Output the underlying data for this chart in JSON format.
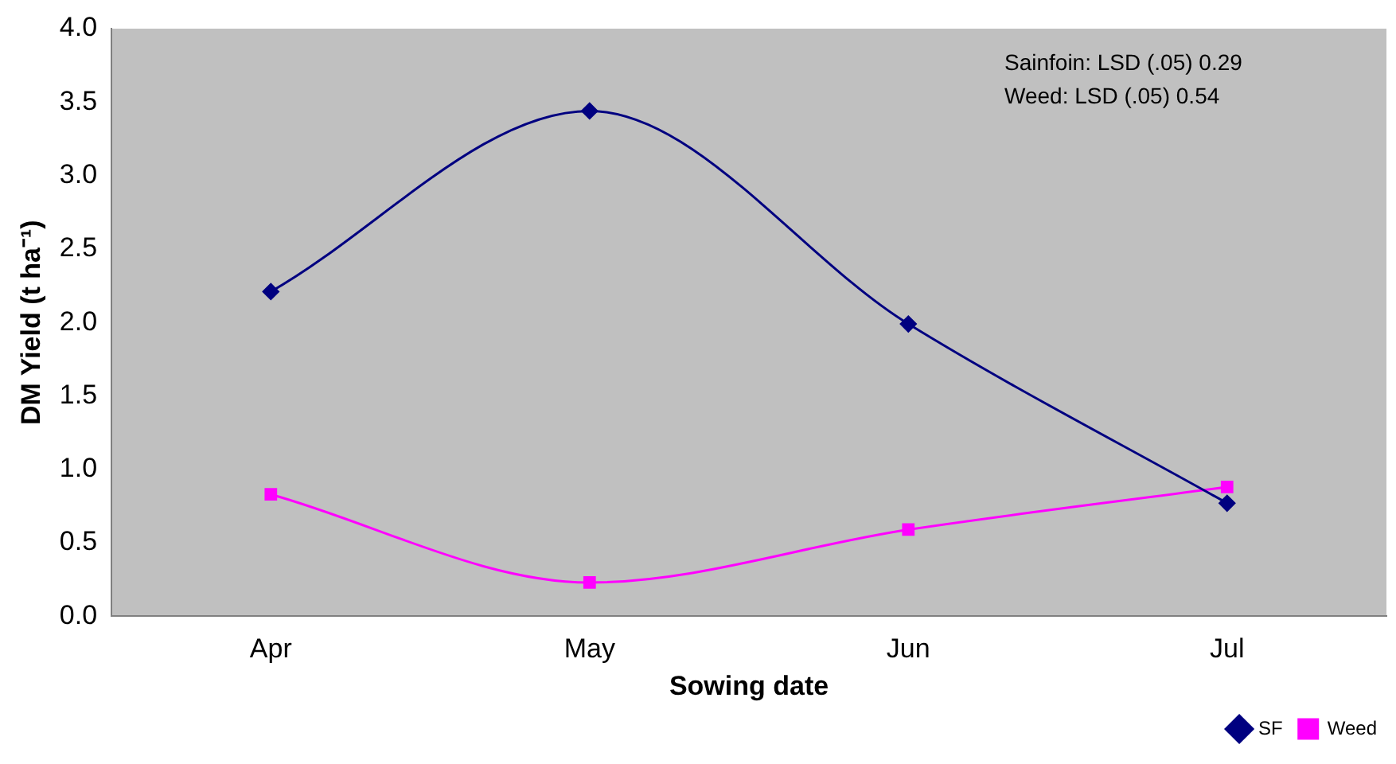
{
  "chart_data": {
    "type": "line",
    "xlabel": "Sowing date",
    "ylabel": "DM Yield (t ha⁻¹)",
    "categories": [
      "Apr",
      "May",
      "Jun",
      "Jul"
    ],
    "series": [
      {
        "name": "SF",
        "color": "#000080",
        "marker": "diamond",
        "values": [
          2.21,
          3.44,
          1.99,
          0.77
        ]
      },
      {
        "name": "Weed",
        "color": "#ff00ff",
        "marker": "square",
        "values": [
          0.83,
          0.23,
          0.59,
          0.88
        ]
      }
    ],
    "ylim": [
      0,
      4
    ],
    "yticks": [
      {
        "value": 0,
        "label": "0.0"
      },
      {
        "value": 0.5,
        "label": "0.5"
      },
      {
        "value": 1,
        "label": "1.0"
      },
      {
        "value": 1.5,
        "label": "1.5"
      },
      {
        "value": 2,
        "label": "2.0"
      },
      {
        "value": 2.5,
        "label": "2.5"
      },
      {
        "value": 3,
        "label": "3.0"
      },
      {
        "value": 3.5,
        "label": "3.5"
      },
      {
        "value": 4,
        "label": "4.0"
      }
    ],
    "annotations": [
      "Sainfoin: LSD (.05) 0.29",
      "Weed: LSD (.05) 0.54"
    ],
    "grid": false,
    "legend": "bottom right",
    "line_style": "solid"
  }
}
